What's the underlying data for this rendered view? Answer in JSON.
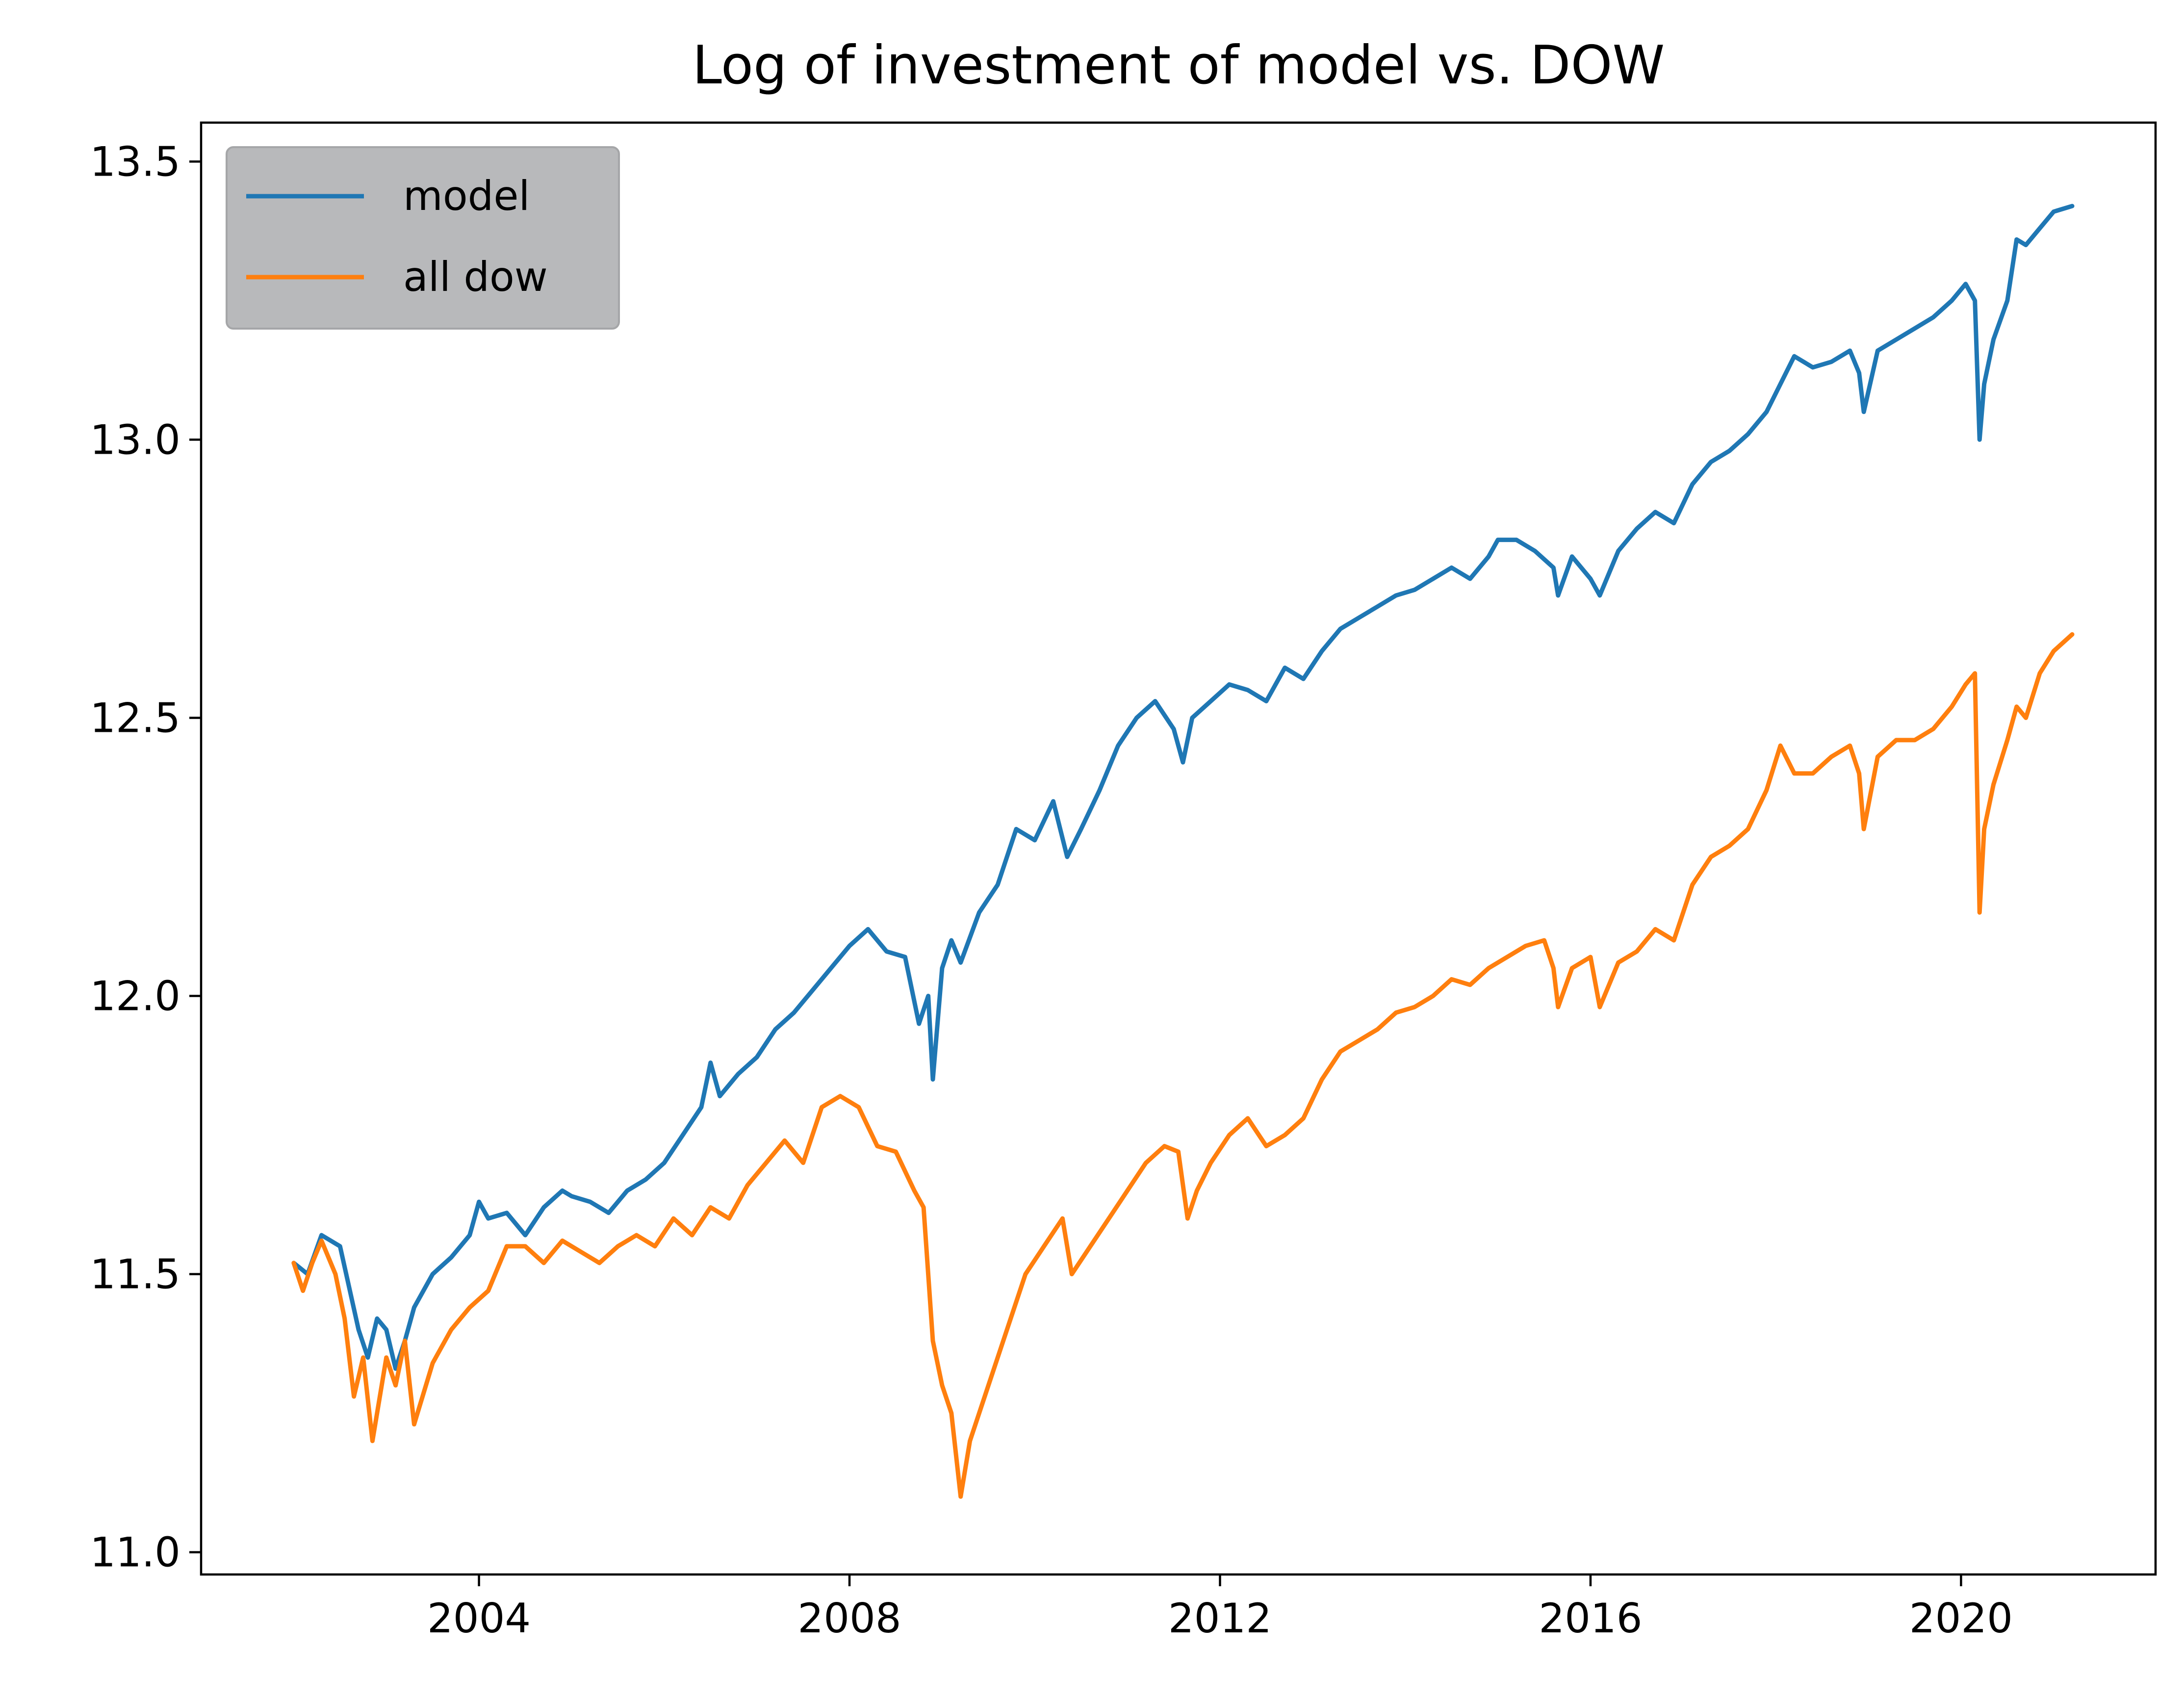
{
  "chart_data": {
    "type": "line",
    "title": "Log of investment of model vs. DOW",
    "xlabel": "",
    "ylabel": "",
    "xlim": [
      2001.0,
      2022.1
    ],
    "ylim": [
      10.96,
      13.57
    ],
    "x_ticks": [
      2004,
      2008,
      2012,
      2016,
      2020
    ],
    "x_tick_labels": [
      "2004",
      "2008",
      "2012",
      "2016",
      "2020"
    ],
    "y_ticks": [
      11.0,
      11.5,
      12.0,
      12.5,
      13.0,
      13.5
    ],
    "y_tick_labels": [
      "11.0",
      "11.5",
      "12.0",
      "12.5",
      "13.0",
      "13.5"
    ],
    "grid": false,
    "legend": {
      "placement": "upper-left"
    },
    "series": [
      {
        "name": "model",
        "color": "#1f77b4",
        "x": [
          2002.0,
          2002.15,
          2002.3,
          2002.5,
          2002.7,
          2002.8,
          2002.9,
          2003.0,
          2003.1,
          2003.2,
          2003.3,
          2003.5,
          2003.7,
          2003.9,
          2004.0,
          2004.1,
          2004.3,
          2004.5,
          2004.7,
          2004.9,
          2005.0,
          2005.2,
          2005.4,
          2005.6,
          2005.8,
          2006.0,
          2006.2,
          2006.4,
          2006.5,
          2006.6,
          2006.8,
          2007.0,
          2007.2,
          2007.4,
          2007.6,
          2007.8,
          2008.0,
          2008.2,
          2008.4,
          2008.6,
          2008.75,
          2008.85,
          2008.9,
          2009.0,
          2009.1,
          2009.2,
          2009.4,
          2009.6,
          2009.8,
          2010.0,
          2010.2,
          2010.35,
          2010.5,
          2010.7,
          2010.9,
          2011.1,
          2011.3,
          2011.5,
          2011.6,
          2011.7,
          2011.9,
          2012.1,
          2012.3,
          2012.5,
          2012.7,
          2012.9,
          2013.1,
          2013.3,
          2013.5,
          2013.7,
          2013.9,
          2014.1,
          2014.3,
          2014.5,
          2014.7,
          2014.9,
          2015.0,
          2015.2,
          2015.4,
          2015.6,
          2015.65,
          2015.8,
          2016.0,
          2016.1,
          2016.3,
          2016.5,
          2016.7,
          2016.9,
          2017.1,
          2017.3,
          2017.5,
          2017.7,
          2017.9,
          2018.05,
          2018.2,
          2018.4,
          2018.6,
          2018.8,
          2018.9,
          2018.95,
          2019.1,
          2019.3,
          2019.5,
          2019.7,
          2019.9,
          2020.05,
          2020.15,
          2020.2,
          2020.25,
          2020.35,
          2020.5,
          2020.6,
          2020.7,
          2020.85,
          2021.0,
          2021.2
        ],
        "y": [
          11.52,
          11.5,
          11.57,
          11.55,
          11.4,
          11.35,
          11.42,
          11.4,
          11.33,
          11.38,
          11.44,
          11.5,
          11.53,
          11.57,
          11.63,
          11.6,
          11.61,
          11.57,
          11.62,
          11.65,
          11.64,
          11.63,
          11.61,
          11.65,
          11.67,
          11.7,
          11.75,
          11.8,
          11.88,
          11.82,
          11.86,
          11.89,
          11.94,
          11.97,
          12.01,
          12.05,
          12.09,
          12.12,
          12.08,
          12.07,
          11.95,
          12.0,
          11.85,
          12.05,
          12.1,
          12.06,
          12.15,
          12.2,
          12.3,
          12.28,
          12.35,
          12.25,
          12.3,
          12.37,
          12.45,
          12.5,
          12.53,
          12.48,
          12.42,
          12.5,
          12.53,
          12.56,
          12.55,
          12.53,
          12.59,
          12.57,
          12.62,
          12.66,
          12.68,
          12.7,
          12.72,
          12.73,
          12.75,
          12.77,
          12.75,
          12.79,
          12.82,
          12.82,
          12.8,
          12.77,
          12.72,
          12.79,
          12.75,
          12.72,
          12.8,
          12.84,
          12.87,
          12.85,
          12.92,
          12.96,
          12.98,
          13.01,
          13.05,
          13.1,
          13.15,
          13.13,
          13.14,
          13.16,
          13.12,
          13.05,
          13.16,
          13.18,
          13.2,
          13.22,
          13.25,
          13.28,
          13.25,
          13.0,
          13.1,
          13.18,
          13.25,
          13.36,
          13.35,
          13.38,
          13.41,
          13.42
        ]
      },
      {
        "name": "all dow",
        "color": "#ff7f0e",
        "x": [
          2002.0,
          2002.1,
          2002.2,
          2002.3,
          2002.45,
          2002.55,
          2002.65,
          2002.75,
          2002.85,
          2003.0,
          2003.1,
          2003.2,
          2003.3,
          2003.5,
          2003.7,
          2003.9,
          2004.1,
          2004.3,
          2004.5,
          2004.7,
          2004.9,
          2005.1,
          2005.3,
          2005.5,
          2005.7,
          2005.9,
          2006.1,
          2006.3,
          2006.5,
          2006.7,
          2006.9,
          2007.1,
          2007.3,
          2007.5,
          2007.7,
          2007.9,
          2008.1,
          2008.3,
          2008.5,
          2008.7,
          2008.8,
          2008.9,
          2009.0,
          2009.1,
          2009.2,
          2009.3,
          2009.5,
          2009.7,
          2009.9,
          2010.1,
          2010.3,
          2010.4,
          2010.6,
          2010.8,
          2011.0,
          2011.2,
          2011.4,
          2011.55,
          2011.65,
          2011.75,
          2011.9,
          2012.1,
          2012.3,
          2012.5,
          2012.7,
          2012.9,
          2013.1,
          2013.3,
          2013.5,
          2013.7,
          2013.9,
          2014.1,
          2014.3,
          2014.5,
          2014.7,
          2014.9,
          2015.1,
          2015.3,
          2015.5,
          2015.6,
          2015.65,
          2015.8,
          2016.0,
          2016.1,
          2016.3,
          2016.5,
          2016.7,
          2016.9,
          2017.1,
          2017.3,
          2017.5,
          2017.7,
          2017.9,
          2018.05,
          2018.2,
          2018.4,
          2018.6,
          2018.8,
          2018.9,
          2018.95,
          2019.1,
          2019.3,
          2019.5,
          2019.7,
          2019.9,
          2020.05,
          2020.15,
          2020.2,
          2020.25,
          2020.35,
          2020.5,
          2020.6,
          2020.7,
          2020.85,
          2021.0,
          2021.2
        ],
        "y": [
          11.52,
          11.47,
          11.52,
          11.56,
          11.5,
          11.42,
          11.28,
          11.35,
          11.2,
          11.35,
          11.3,
          11.38,
          11.23,
          11.34,
          11.4,
          11.44,
          11.47,
          11.55,
          11.55,
          11.52,
          11.56,
          11.54,
          11.52,
          11.55,
          11.57,
          11.55,
          11.6,
          11.57,
          11.62,
          11.6,
          11.66,
          11.7,
          11.74,
          11.7,
          11.8,
          11.82,
          11.8,
          11.73,
          11.72,
          11.65,
          11.62,
          11.38,
          11.3,
          11.25,
          11.1,
          11.2,
          11.3,
          11.4,
          11.5,
          11.55,
          11.6,
          11.5,
          11.55,
          11.6,
          11.65,
          11.7,
          11.73,
          11.72,
          11.6,
          11.65,
          11.7,
          11.75,
          11.78,
          11.73,
          11.75,
          11.78,
          11.85,
          11.9,
          11.92,
          11.94,
          11.97,
          11.98,
          12.0,
          12.03,
          12.02,
          12.05,
          12.07,
          12.09,
          12.1,
          12.05,
          11.98,
          12.05,
          12.07,
          11.98,
          12.06,
          12.08,
          12.12,
          12.1,
          12.2,
          12.25,
          12.27,
          12.3,
          12.37,
          12.45,
          12.4,
          12.4,
          12.43,
          12.45,
          12.4,
          12.3,
          12.43,
          12.46,
          12.46,
          12.48,
          12.52,
          12.56,
          12.58,
          12.15,
          12.3,
          12.38,
          12.46,
          12.52,
          12.5,
          12.58,
          12.62,
          12.65
        ]
      }
    ]
  }
}
